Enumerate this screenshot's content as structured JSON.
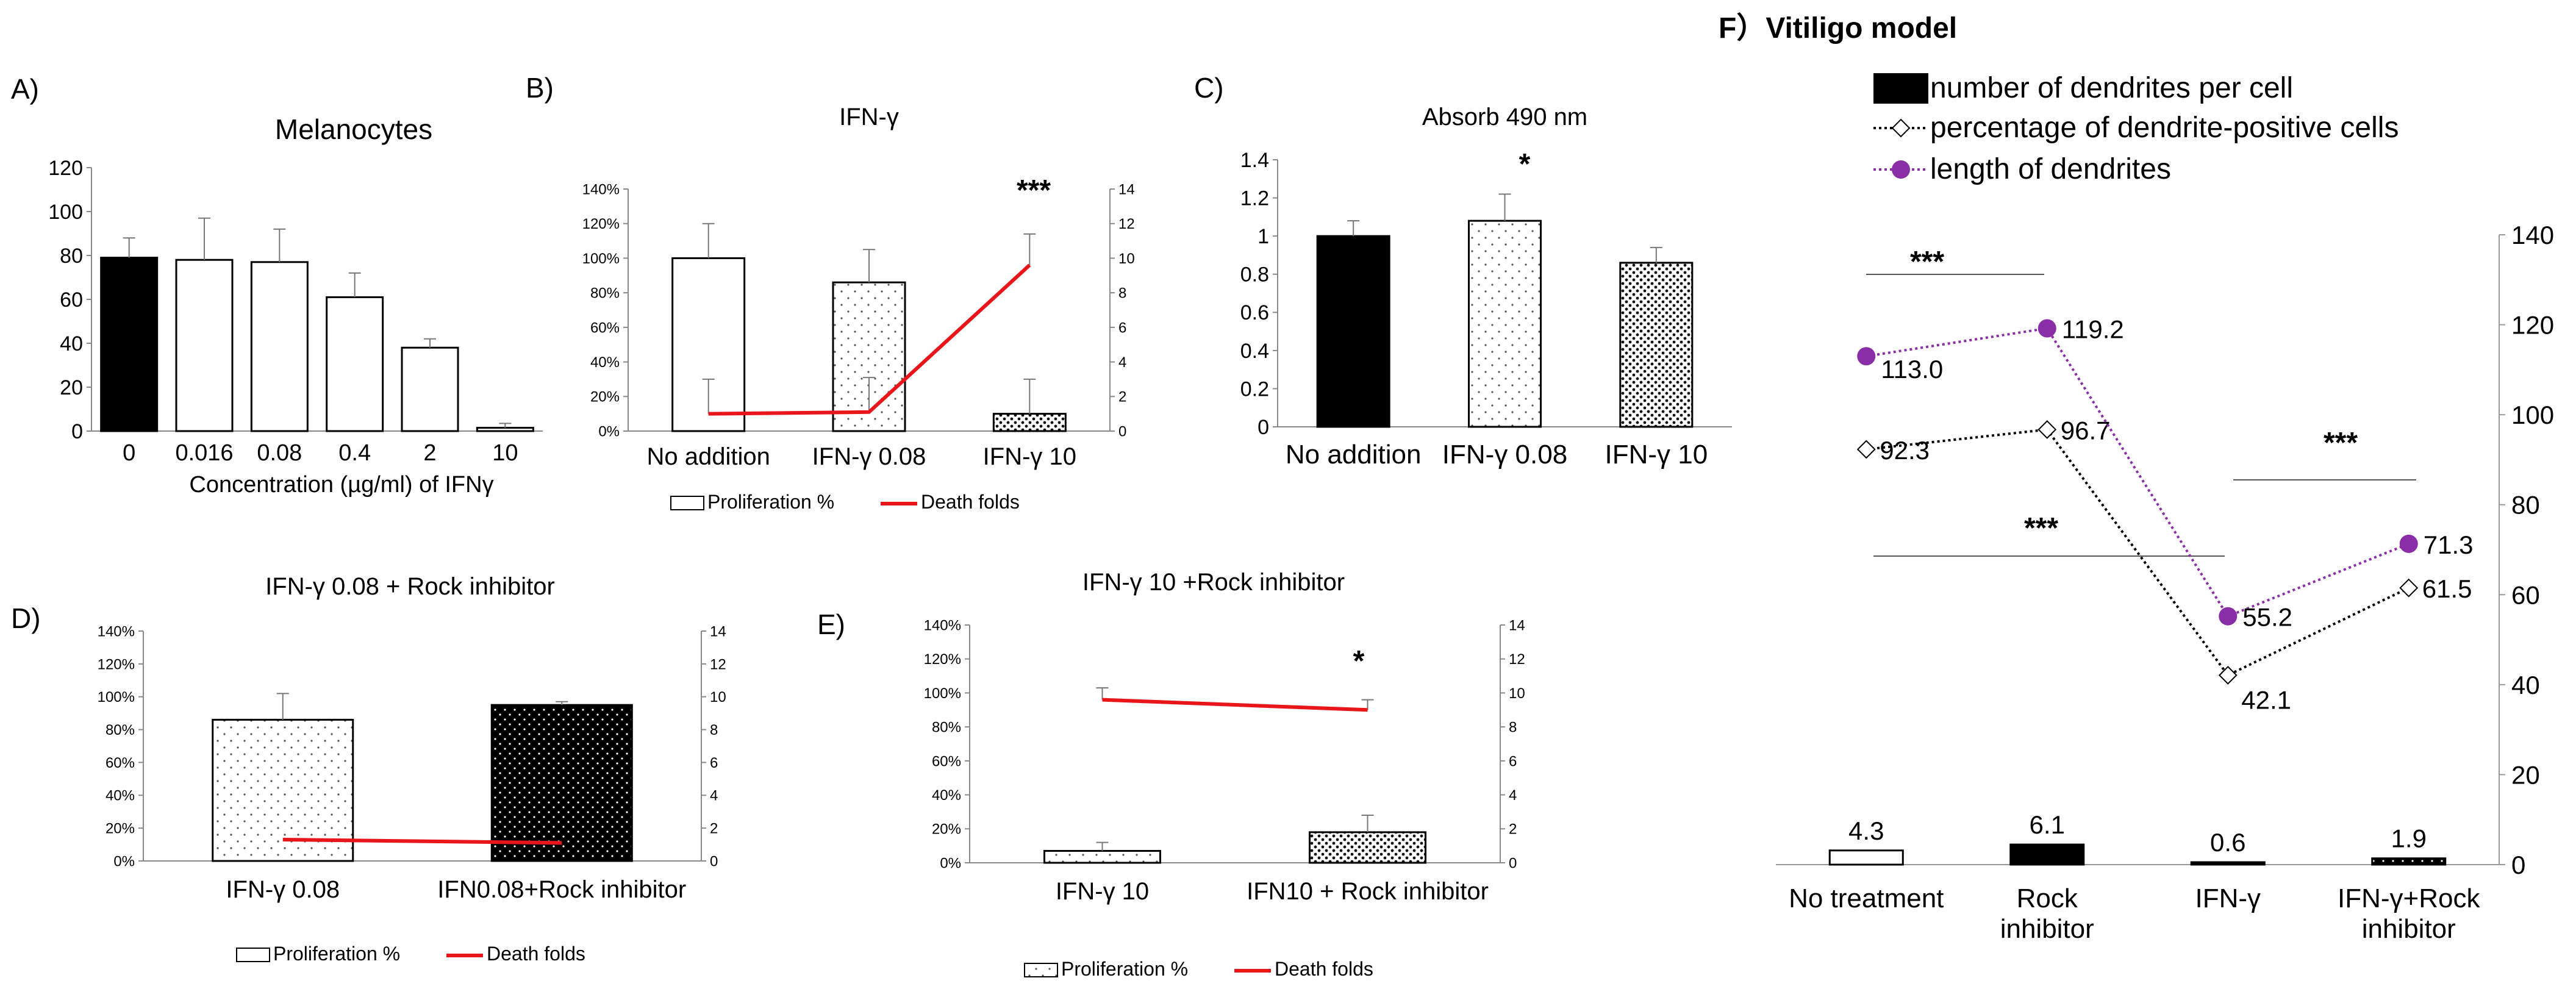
{
  "panels": {
    "A": {
      "label": "A)"
    },
    "B": {
      "label": "B)",
      "stars": "***"
    },
    "C": {
      "label": "C)",
      "stars": "*"
    },
    "D": {
      "label": "D)"
    },
    "E": {
      "label": "E)",
      "stars": "*"
    },
    "F": {
      "label": "F）Vitiligo model",
      "stars_top": "***",
      "stars_mid": "***",
      "stars_right": "***"
    }
  },
  "chart_data": [
    {
      "id": "A",
      "type": "bar",
      "title": "Melanocytes",
      "xlabel": "Concentration (µg/ml) of IFNγ",
      "ylabel": "",
      "categories": [
        "0",
        "0.016",
        "0.08",
        "0.4",
        "2",
        "10"
      ],
      "values": [
        79,
        78,
        77,
        61,
        38,
        1.5
      ],
      "errors": [
        9,
        19,
        15,
        11,
        4,
        2
      ],
      "ylim": [
        0,
        120
      ],
      "yticks": [
        "0",
        "20",
        "40",
        "60",
        "80",
        "100",
        "120"
      ],
      "bar_styles": [
        "solid",
        "white",
        "white",
        "white",
        "white",
        "white"
      ]
    },
    {
      "id": "B",
      "type": "bar+line",
      "title": "IFN-γ",
      "categories": [
        "No addition",
        "IFN-γ 0.08",
        "IFN-γ 10"
      ],
      "series": [
        {
          "name": "Proliferation %",
          "values": [
            100,
            86,
            10
          ],
          "errors": [
            20,
            19,
            20
          ],
          "axis": "left",
          "unit": "%"
        },
        {
          "name": "Death folds",
          "values": [
            1.0,
            1.1,
            9.6
          ],
          "errors": [
            2.0,
            2.0,
            1.8
          ],
          "axis": "right"
        }
      ],
      "ylim_left": [
        0,
        140
      ],
      "yticks_left": [
        "0%",
        "20%",
        "40%",
        "60%",
        "80%",
        "100%",
        "120%",
        "140%"
      ],
      "ylim_right": [
        0,
        14
      ],
      "yticks_right": [
        "0",
        "2",
        "4",
        "6",
        "8",
        "10",
        "12",
        "14"
      ],
      "legend": [
        "Proliferation %",
        "Death folds"
      ]
    },
    {
      "id": "C",
      "type": "bar",
      "title": "Absorb 490 nm",
      "categories": [
        "No addition",
        "IFN-γ 0.08",
        "IFN-γ 10"
      ],
      "values": [
        1.0,
        1.08,
        0.86
      ],
      "errors": [
        0.08,
        0.14,
        0.08
      ],
      "ylim": [
        0,
        1.4
      ],
      "yticks": [
        "0",
        "0.2",
        "0.4",
        "0.6",
        "0.8",
        "1",
        "1.2",
        "1.4"
      ]
    },
    {
      "id": "D",
      "type": "bar+line",
      "title": "IFN-γ 0.08 + Rock inhibitor",
      "categories": [
        "IFN-γ 0.08",
        "IFN0.08+Rock inhibitor"
      ],
      "series": [
        {
          "name": "Proliferation %",
          "values": [
            86,
            95
          ],
          "errors": [
            16,
            2
          ],
          "axis": "left",
          "unit": "%"
        },
        {
          "name": "Death folds",
          "values": [
            1.3,
            1.1
          ],
          "axis": "right"
        }
      ],
      "ylim_left": [
        0,
        140
      ],
      "yticks_left": [
        "0%",
        "20%",
        "40%",
        "60%",
        "80%",
        "100%",
        "120%",
        "140%"
      ],
      "ylim_right": [
        0,
        14
      ],
      "yticks_right": [
        "0",
        "2",
        "4",
        "6",
        "8",
        "10",
        "12",
        "14"
      ],
      "legend": [
        "Proliferation %",
        "Death folds"
      ]
    },
    {
      "id": "E",
      "type": "bar+line",
      "title": "IFN-γ 10 +Rock inhibitor",
      "categories": [
        "IFN-γ 10",
        "IFN10 + Rock inhibitor"
      ],
      "series": [
        {
          "name": "Proliferation %",
          "values": [
            7,
            18
          ],
          "errors": [
            5,
            10
          ],
          "axis": "left",
          "unit": "%"
        },
        {
          "name": "Death folds",
          "values": [
            9.6,
            9.0
          ],
          "errors": [
            0.7,
            0.6
          ],
          "axis": "right"
        }
      ],
      "ylim_left": [
        0,
        140
      ],
      "yticks_left": [
        "0%",
        "20%",
        "40%",
        "60%",
        "80%",
        "100%",
        "120%",
        "140%"
      ],
      "ylim_right": [
        0,
        14
      ],
      "yticks_right": [
        "0",
        "2",
        "4",
        "6",
        "8",
        "10",
        "12",
        "14"
      ],
      "legend": [
        "Proliferation %",
        "Death folds"
      ]
    },
    {
      "id": "F",
      "type": "bar+line",
      "title": "Vitiligo model",
      "categories": [
        "No treatment",
        "Rock inhibitor",
        "IFN-γ",
        "IFN-γ+Rock inhibitor"
      ],
      "series": [
        {
          "name": "number of dendrites per cell",
          "values": [
            4.3,
            6.1,
            0.6,
            1.9
          ],
          "labels": [
            "4.3",
            "6.1",
            "0.6",
            "1.9"
          ]
        },
        {
          "name": "percentage of dendrite-positive cells",
          "values": [
            92.3,
            96.7,
            42.1,
            61.5
          ],
          "labels": [
            "92.3",
            "96.7",
            "42.1",
            "61.5"
          ]
        },
        {
          "name": "length of dendrites",
          "values": [
            113.0,
            119.2,
            55.2,
            71.3
          ],
          "labels": [
            "113.0",
            "119.2",
            "55.2",
            "71.3"
          ]
        }
      ],
      "ylim": [
        0,
        140
      ],
      "yticks": [
        "0",
        "20",
        "40",
        "60",
        "80",
        "100",
        "120",
        "140"
      ],
      "colors": {
        "line_length": "#8a2ea8",
        "bar_fill": "#000000"
      }
    }
  ]
}
